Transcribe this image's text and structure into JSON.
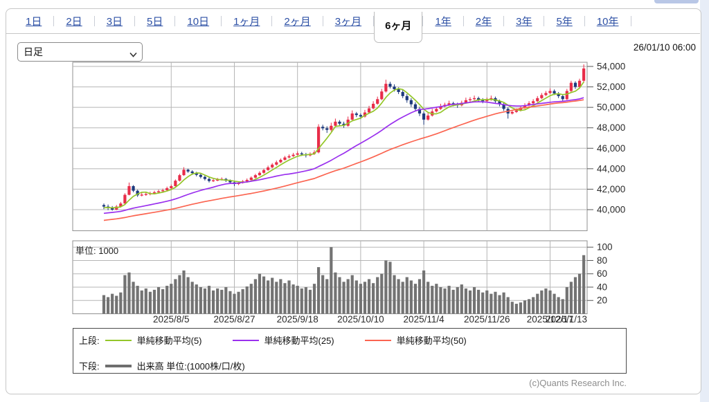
{
  "page": {
    "timestamp": "26/01/10 06:00",
    "copyright": "(c)Quants Research Inc."
  },
  "tabs": {
    "items": [
      "1日",
      "2日",
      "3日",
      "5日",
      "10日",
      "1ヶ月",
      "2ヶ月",
      "3ヶ月",
      "6ヶ月",
      "1年",
      "2年",
      "3年",
      "5年",
      "10年"
    ],
    "selected": "6ヶ月"
  },
  "controls": {
    "chart_type_select": {
      "value": "日足"
    }
  },
  "legend": {
    "upper_label": "上段:",
    "lower_label": "下段:",
    "sma5_label": "単純移動平均(5)",
    "sma25_label": "単純移動平均(25)",
    "sma50_label": "単純移動平均(50)",
    "volume_label": "出来高 単位:(1000株/口/枚)"
  },
  "chart_data": {
    "type": "candlestick",
    "title": "",
    "price_axis": {
      "tick_values": [
        54000,
        52000,
        50000,
        48000,
        46000,
        44000,
        42000,
        40000
      ],
      "tick_labels": [
        "54,000",
        "52,000",
        "50,000",
        "48,000",
        "46,000",
        "44,000",
        "42,000",
        "40,000"
      ],
      "range": [
        37970,
        54400
      ]
    },
    "volume_axis": {
      "tick_values": [
        100,
        80,
        60,
        40,
        20
      ],
      "unit_label": "単位: 1000",
      "range": [
        0,
        109
      ]
    },
    "x_labels": [
      "2025/8/5",
      "2025/8/27",
      "2025/9/18",
      "2025/10/10",
      "2025/11/4",
      "2025/11/26",
      "2025/12/17",
      "2026/1/13"
    ],
    "x_label_indices": [
      16,
      31,
      46,
      61,
      76,
      91,
      106,
      117
    ],
    "sma_windows": [
      5,
      25,
      50
    ],
    "colors": {
      "up": "#e82d49",
      "down": "#1d3a7d",
      "sma5": "#94c629",
      "sma25": "#9a30ee",
      "sma50": "#fb6450",
      "volume": "#737373",
      "grid": "#b5b5b5",
      "border": "#8f8f8f",
      "tick": "#555555",
      "label": "#2a2a2a",
      "link": "#2d50a5"
    },
    "candles_ohlc": [
      [
        40450,
        40600,
        40050,
        40300
      ],
      [
        40300,
        40500,
        39950,
        40150
      ],
      [
        40150,
        40350,
        39900,
        40000
      ],
      [
        40000,
        40450,
        39950,
        40300
      ],
      [
        40300,
        40750,
        40200,
        40600
      ],
      [
        40600,
        41600,
        40550,
        41450
      ],
      [
        41450,
        42650,
        41400,
        42300
      ],
      [
        42300,
        42400,
        41700,
        41850
      ],
      [
        41850,
        41950,
        41250,
        41400
      ],
      [
        41400,
        41650,
        41300,
        41470
      ],
      [
        41470,
        41700,
        41350,
        41530
      ],
      [
        41530,
        41750,
        41400,
        41600
      ],
      [
        41600,
        41850,
        41500,
        41700
      ],
      [
        41700,
        41950,
        41600,
        41800
      ],
      [
        41800,
        42050,
        41650,
        41900
      ],
      [
        41900,
        42250,
        41800,
        42100
      ],
      [
        42100,
        42450,
        42000,
        42300
      ],
      [
        42300,
        42950,
        42250,
        42830
      ],
      [
        42830,
        43500,
        42750,
        43370
      ],
      [
        43370,
        44150,
        43300,
        43900
      ],
      [
        43900,
        44000,
        43600,
        43730
      ],
      [
        43730,
        43850,
        43400,
        43570
      ],
      [
        43570,
        43700,
        43250,
        43400
      ],
      [
        43400,
        43550,
        43050,
        43200
      ],
      [
        43200,
        43350,
        42850,
        43000
      ],
      [
        43000,
        43150,
        42650,
        42800
      ],
      [
        42800,
        43000,
        42700,
        42870
      ],
      [
        42870,
        43100,
        42780,
        42930
      ],
      [
        42930,
        43150,
        42850,
        43000
      ],
      [
        43000,
        43100,
        42700,
        42830
      ],
      [
        42830,
        42950,
        42550,
        42670
      ],
      [
        42670,
        42800,
        42300,
        42500
      ],
      [
        42500,
        42750,
        42400,
        42630
      ],
      [
        42630,
        42900,
        42550,
        42770
      ],
      [
        42770,
        43050,
        42700,
        42900
      ],
      [
        42900,
        43250,
        42850,
        43130
      ],
      [
        43130,
        43500,
        43050,
        43370
      ],
      [
        43370,
        43750,
        43300,
        43600
      ],
      [
        43600,
        44000,
        43500,
        43870
      ],
      [
        43870,
        44300,
        43800,
        44130
      ],
      [
        44130,
        44550,
        44050,
        44400
      ],
      [
        44400,
        44800,
        44300,
        44630
      ],
      [
        44630,
        45000,
        44550,
        44870
      ],
      [
        44870,
        45250,
        44800,
        45100
      ],
      [
        45100,
        45400,
        45000,
        45230
      ],
      [
        45230,
        45550,
        45150,
        45370
      ],
      [
        45370,
        45700,
        45300,
        45500
      ],
      [
        45500,
        45650,
        45250,
        45400
      ],
      [
        45400,
        45550,
        45100,
        45300
      ],
      [
        45300,
        45600,
        45200,
        45450
      ],
      [
        45450,
        45800,
        45350,
        45600
      ],
      [
        45600,
        48350,
        45500,
        48100
      ],
      [
        48100,
        48300,
        47750,
        47950
      ],
      [
        47950,
        48150,
        47500,
        47800
      ],
      [
        47800,
        48500,
        47650,
        48200
      ],
      [
        48200,
        48900,
        48100,
        48600
      ],
      [
        48600,
        48750,
        48200,
        48400
      ],
      [
        48400,
        48600,
        48000,
        48200
      ],
      [
        48200,
        49100,
        48100,
        48800
      ],
      [
        48800,
        49700,
        48700,
        49400
      ],
      [
        49400,
        49550,
        49050,
        49250
      ],
      [
        49250,
        49400,
        48850,
        49100
      ],
      [
        49100,
        49750,
        49000,
        49500
      ],
      [
        49500,
        50150,
        49400,
        49900
      ],
      [
        49900,
        50600,
        49800,
        50350
      ],
      [
        50350,
        51050,
        50250,
        50800
      ],
      [
        50800,
        51800,
        50700,
        51550
      ],
      [
        51550,
        52700,
        51450,
        52300
      ],
      [
        52300,
        52500,
        51850,
        52030
      ],
      [
        52030,
        52250,
        51550,
        51770
      ],
      [
        51770,
        51950,
        51300,
        51500
      ],
      [
        51500,
        51700,
        50900,
        51100
      ],
      [
        51100,
        51300,
        50450,
        50700
      ],
      [
        50700,
        50900,
        50050,
        50300
      ],
      [
        50300,
        50500,
        49600,
        49850
      ],
      [
        49850,
        50050,
        49150,
        49400
      ],
      [
        49400,
        49600,
        48300,
        48800
      ],
      [
        48800,
        49450,
        48700,
        49200
      ],
      [
        49200,
        49850,
        49100,
        49600
      ],
      [
        49600,
        50050,
        49500,
        49850
      ],
      [
        49850,
        50350,
        49750,
        50100
      ],
      [
        50100,
        50450,
        50000,
        50250
      ],
      [
        50250,
        50650,
        50150,
        50400
      ],
      [
        50400,
        50550,
        50100,
        50300
      ],
      [
        50300,
        50450,
        49950,
        50200
      ],
      [
        50200,
        50650,
        50100,
        50450
      ],
      [
        50450,
        50950,
        50350,
        50700
      ],
      [
        50700,
        51000,
        50550,
        50800
      ],
      [
        50800,
        51150,
        50700,
        50900
      ],
      [
        50900,
        51050,
        50550,
        50750
      ],
      [
        50750,
        50900,
        50400,
        50600
      ],
      [
        50600,
        50950,
        50500,
        50750
      ],
      [
        50750,
        51150,
        50650,
        50900
      ],
      [
        50900,
        51050,
        50400,
        50600
      ],
      [
        50600,
        50750,
        50100,
        50300
      ],
      [
        50300,
        50450,
        49650,
        49850
      ],
      [
        49850,
        50000,
        48900,
        49400
      ],
      [
        49400,
        49750,
        49300,
        49550
      ],
      [
        49550,
        49900,
        49450,
        49700
      ],
      [
        49700,
        50150,
        49600,
        49950
      ],
      [
        49950,
        50400,
        49850,
        50200
      ],
      [
        50200,
        50600,
        50100,
        50400
      ],
      [
        50400,
        50800,
        50300,
        50600
      ],
      [
        50600,
        51100,
        50500,
        50900
      ],
      [
        50900,
        51400,
        50800,
        51200
      ],
      [
        51200,
        51600,
        51100,
        51400
      ],
      [
        51400,
        51850,
        51300,
        51600
      ],
      [
        51600,
        51750,
        51200,
        51350
      ],
      [
        51350,
        51500,
        50900,
        51100
      ],
      [
        51100,
        51250,
        50550,
        50800
      ],
      [
        50800,
        51800,
        50700,
        51600
      ],
      [
        51600,
        52600,
        51500,
        52400
      ],
      [
        52400,
        52550,
        51800,
        52000
      ],
      [
        52000,
        52800,
        51900,
        52600
      ],
      [
        52600,
        54200,
        52400,
        53800
      ]
    ],
    "volumes": [
      28,
      25,
      30,
      27,
      32,
      58,
      62,
      48,
      42,
      35,
      38,
      33,
      36,
      40,
      37,
      42,
      45,
      52,
      58,
      65,
      55,
      48,
      44,
      40,
      38,
      42,
      35,
      38,
      36,
      40,
      34,
      30,
      33,
      37,
      41,
      45,
      52,
      60,
      56,
      50,
      54,
      48,
      52,
      46,
      50,
      44,
      42,
      38,
      40,
      36,
      45,
      70,
      58,
      52,
      100,
      62,
      55,
      48,
      52,
      58,
      50,
      45,
      48,
      52,
      46,
      55,
      60,
      80,
      78,
      58,
      52,
      48,
      55,
      50,
      45,
      52,
      65,
      48,
      42,
      45,
      40,
      38,
      42,
      36,
      40,
      44,
      38,
      35,
      40,
      36,
      32,
      35,
      30,
      33,
      28,
      32,
      25,
      18,
      15,
      17,
      20,
      22,
      25,
      30,
      35,
      38,
      35,
      30,
      25,
      22,
      40,
      48,
      55,
      60,
      88
    ]
  }
}
